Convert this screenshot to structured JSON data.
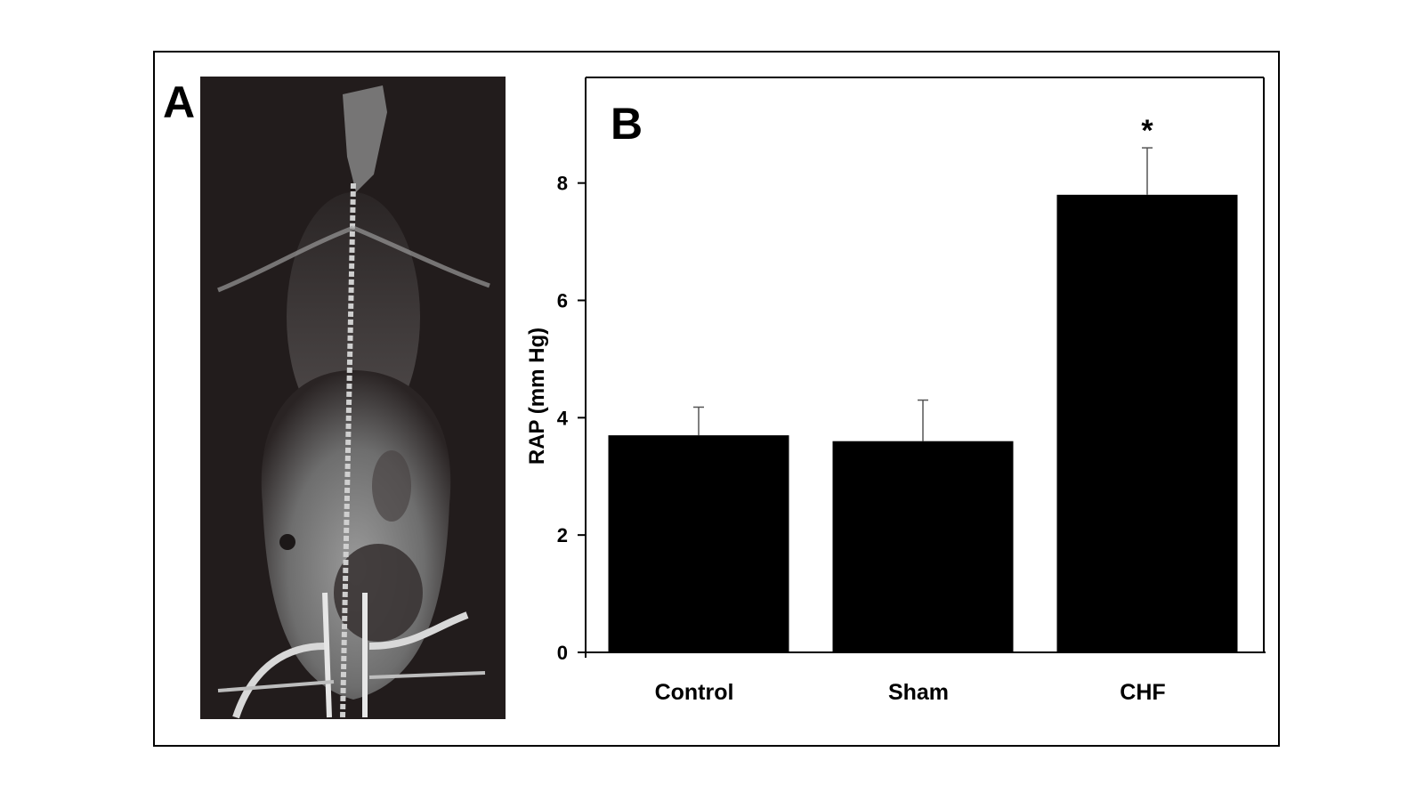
{
  "panels": {
    "a_label": "A",
    "b_label": "B"
  },
  "chart_data": {
    "type": "bar",
    "categories": [
      "Control",
      "Sham",
      "CHF"
    ],
    "values": [
      3.7,
      3.6,
      7.8
    ],
    "error": [
      0.48,
      0.7,
      0.8
    ],
    "annotations": [
      "",
      "",
      "*"
    ],
    "ylabel": "RAP (mm Hg)",
    "xlabel": "",
    "ylim": [
      0,
      9.8
    ],
    "yticks": [
      0,
      2,
      4,
      6,
      8
    ],
    "bar_color": "#000000",
    "grid": false,
    "legend": "none"
  }
}
